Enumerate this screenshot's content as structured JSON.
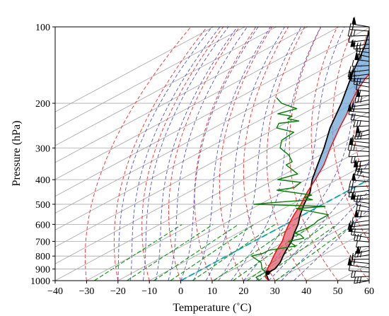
{
  "chart_data": {
    "type": "line",
    "subtype": "skew-T log-P diagram",
    "xlabel": "Temperature ($^\\circ$C)",
    "ylabel": "Pressure (hPa)",
    "xlim": [
      -40,
      60
    ],
    "ylim": [
      1000,
      100
    ],
    "y_scale": "log",
    "grid": true,
    "x_ticks": [
      -40,
      -30,
      -20,
      -10,
      0,
      10,
      20,
      30,
      40,
      50,
      60
    ],
    "y_ticks": [
      100,
      200,
      300,
      400,
      500,
      600,
      700,
      800,
      900,
      1000
    ],
    "series": [
      {
        "role": "temperature",
        "color": "#ff0000",
        "points": [
          [
            1000,
            28
          ],
          [
            970,
            25
          ],
          [
            925,
            22
          ],
          [
            850,
            18
          ],
          [
            800,
            15
          ],
          [
            750,
            12
          ],
          [
            700,
            9
          ],
          [
            650,
            5
          ],
          [
            600,
            1
          ],
          [
            550,
            -3
          ],
          [
            500,
            -7
          ],
          [
            480,
            -9
          ],
          [
            450,
            -12
          ],
          [
            400,
            -17
          ],
          [
            350,
            -23
          ],
          [
            300,
            -31
          ],
          [
            250,
            -40
          ],
          [
            220,
            -46
          ],
          [
            200,
            -51
          ],
          [
            180,
            -56
          ],
          [
            160,
            -61
          ],
          [
            150,
            -63
          ],
          [
            145,
            -65
          ],
          [
            140,
            -66
          ],
          [
            130,
            -68
          ],
          [
            120,
            -71
          ],
          [
            115,
            -72
          ],
          [
            110,
            -74
          ],
          [
            105,
            -76
          ],
          [
            100,
            -77
          ]
        ]
      },
      {
        "role": "dewpoint",
        "color": "#008000",
        "points": [
          [
            1000,
            25
          ],
          [
            970,
            22
          ],
          [
            950,
            22
          ],
          [
            925,
            22
          ],
          [
            900,
            19
          ],
          [
            850,
            15
          ],
          [
            800,
            8
          ],
          [
            780,
            10
          ],
          [
            760,
            10
          ],
          [
            730,
            16
          ],
          [
            700,
            11
          ],
          [
            680,
            14
          ],
          [
            660,
            11
          ],
          [
            650,
            8
          ],
          [
            620,
            9
          ],
          [
            600,
            9
          ],
          [
            580,
            8
          ],
          [
            550,
            8
          ],
          [
            520,
            -6
          ],
          [
            510,
            2
          ],
          [
            500,
            -22
          ],
          [
            490,
            -15
          ],
          [
            480,
            -6
          ],
          [
            470,
            -10
          ],
          [
            460,
            -9
          ],
          [
            440,
            -23
          ],
          [
            430,
            -19
          ],
          [
            410,
            -20
          ],
          [
            400,
            -29
          ],
          [
            380,
            -26
          ],
          [
            350,
            -35
          ],
          [
            340,
            -35
          ],
          [
            320,
            -40
          ],
          [
            300,
            -47
          ],
          [
            280,
            -51
          ],
          [
            260,
            -52
          ],
          [
            250,
            -60
          ],
          [
            240,
            -62
          ],
          [
            235,
            -57
          ],
          [
            230,
            -62
          ],
          [
            225,
            -62
          ],
          [
            220,
            -68
          ],
          [
            210,
            -65
          ],
          [
            200,
            -73
          ],
          [
            190,
            -78
          ]
        ]
      },
      {
        "role": "parcel profile",
        "color": "#000000",
        "points": [
          [
            1000,
            28
          ],
          [
            950,
            24
          ],
          [
            930,
            23
          ],
          [
            900,
            23
          ],
          [
            850,
            21
          ],
          [
            800,
            18
          ],
          [
            750,
            15
          ],
          [
            700,
            12
          ],
          [
            650,
            8
          ],
          [
            600,
            4
          ],
          [
            550,
            -1
          ],
          [
            500,
            -6
          ],
          [
            450,
            -11
          ],
          [
            400,
            -18
          ],
          [
            350,
            -25
          ],
          [
            300,
            -33
          ],
          [
            250,
            -43
          ],
          [
            200,
            -54
          ],
          [
            150,
            -69
          ],
          [
            120,
            -80
          ],
          [
            100,
            -90
          ]
        ]
      }
    ],
    "shading": [
      {
        "role": "CAPE",
        "color": "#e06070"
      },
      {
        "role": "CIN",
        "color": "#6fa8d8"
      }
    ],
    "lcl_marker": {
      "pressure": 930,
      "temperature": 23,
      "color": "#000000"
    },
    "reference_lines": [
      {
        "role": "dry adiabats",
        "color": "#ff0000",
        "style": "dashed"
      },
      {
        "role": "moist adiabats",
        "color": "#3333cc",
        "style": "dashed"
      },
      {
        "role": "mixing ratio lines",
        "color": "#009900",
        "style": "dashed"
      },
      {
        "role": "isotherms",
        "color": "#999999",
        "style": "solid"
      },
      {
        "role": "0 C isotherm",
        "color": "#00aaaa",
        "style": "dashed"
      }
    ],
    "wind_barbs": {
      "color": "#000000",
      "placement": "right edge",
      "count": 60
    }
  }
}
